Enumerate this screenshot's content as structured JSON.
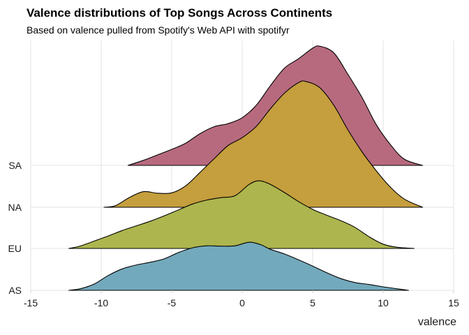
{
  "chart_data": {
    "type": "ridgeline",
    "title": "Valence distributions of Top Songs Across Continents",
    "subtitle": "Based on valence pulled from Spotify's Web API with spotifyr",
    "xlabel": "valence",
    "ylabel": "",
    "xlim": [
      -15,
      15
    ],
    "x_ticks": [
      -15,
      -10,
      -5,
      0,
      5,
      10,
      15
    ],
    "grid": true,
    "legend": "none",
    "series": [
      {
        "name": "AS",
        "color": "#73a9bc",
        "points": [
          [
            -12.3,
            0.0
          ],
          [
            -11.5,
            0.04
          ],
          [
            -10.5,
            0.16
          ],
          [
            -9.5,
            0.38
          ],
          [
            -8.5,
            0.55
          ],
          [
            -7.5,
            0.65
          ],
          [
            -6.5,
            0.72
          ],
          [
            -5.5,
            0.81
          ],
          [
            -4.5,
            0.97
          ],
          [
            -3.5,
            1.09
          ],
          [
            -2.5,
            1.14
          ],
          [
            -1.5,
            1.13
          ],
          [
            -0.5,
            1.14
          ],
          [
            0.5,
            1.23
          ],
          [
            1.3,
            1.17
          ],
          [
            2.0,
            1.05
          ],
          [
            3.0,
            0.93
          ],
          [
            4.0,
            0.78
          ],
          [
            5.0,
            0.62
          ],
          [
            6.0,
            0.45
          ],
          [
            7.0,
            0.3
          ],
          [
            8.0,
            0.2
          ],
          [
            9.0,
            0.15
          ],
          [
            10.0,
            0.09
          ],
          [
            11.0,
            0.04
          ],
          [
            11.8,
            0.0
          ]
        ]
      },
      {
        "name": "EU",
        "color": "#adb54e",
        "points": [
          [
            -12.3,
            0.0
          ],
          [
            -11.5,
            0.06
          ],
          [
            -10.5,
            0.19
          ],
          [
            -9.5,
            0.32
          ],
          [
            -8.5,
            0.46
          ],
          [
            -7.5,
            0.58
          ],
          [
            -6.5,
            0.7
          ],
          [
            -5.5,
            0.84
          ],
          [
            -4.5,
            0.99
          ],
          [
            -3.5,
            1.14
          ],
          [
            -2.5,
            1.24
          ],
          [
            -1.5,
            1.3
          ],
          [
            -0.5,
            1.35
          ],
          [
            0.5,
            1.64
          ],
          [
            1.2,
            1.73
          ],
          [
            2.0,
            1.64
          ],
          [
            3.0,
            1.43
          ],
          [
            4.0,
            1.2
          ],
          [
            5.0,
            1.0
          ],
          [
            6.0,
            0.85
          ],
          [
            7.0,
            0.71
          ],
          [
            8.0,
            0.54
          ],
          [
            9.0,
            0.3
          ],
          [
            10.0,
            0.11
          ],
          [
            11.0,
            0.03
          ],
          [
            12.2,
            0.0
          ]
        ]
      },
      {
        "name": "NA",
        "color": "#c59e3d",
        "points": [
          [
            -9.8,
            0.0
          ],
          [
            -9.0,
            0.04
          ],
          [
            -8.0,
            0.25
          ],
          [
            -7.0,
            0.4
          ],
          [
            -6.0,
            0.36
          ],
          [
            -5.0,
            0.37
          ],
          [
            -4.0,
            0.55
          ],
          [
            -3.0,
            0.89
          ],
          [
            -2.0,
            1.24
          ],
          [
            -1.0,
            1.58
          ],
          [
            0.0,
            1.78
          ],
          [
            1.0,
            2.07
          ],
          [
            2.0,
            2.52
          ],
          [
            3.0,
            2.92
          ],
          [
            4.0,
            3.19
          ],
          [
            4.5,
            3.22
          ],
          [
            5.5,
            3.06
          ],
          [
            6.5,
            2.61
          ],
          [
            7.5,
            1.98
          ],
          [
            8.5,
            1.42
          ],
          [
            9.5,
            0.94
          ],
          [
            10.5,
            0.52
          ],
          [
            11.5,
            0.21
          ],
          [
            12.8,
            0.0
          ]
        ]
      },
      {
        "name": "SA",
        "color": "#b76a7e",
        "points": [
          [
            -8.1,
            0.0
          ],
          [
            -7.0,
            0.13
          ],
          [
            -6.0,
            0.27
          ],
          [
            -5.0,
            0.41
          ],
          [
            -4.0,
            0.57
          ],
          [
            -3.0,
            0.81
          ],
          [
            -2.0,
            0.99
          ],
          [
            -1.0,
            1.07
          ],
          [
            0.0,
            1.22
          ],
          [
            1.0,
            1.54
          ],
          [
            2.0,
            2.04
          ],
          [
            3.0,
            2.49
          ],
          [
            4.0,
            2.73
          ],
          [
            5.0,
            3.0
          ],
          [
            5.5,
            3.05
          ],
          [
            6.5,
            2.88
          ],
          [
            7.5,
            2.33
          ],
          [
            8.5,
            1.74
          ],
          [
            9.5,
            1.05
          ],
          [
            10.5,
            0.54
          ],
          [
            11.5,
            0.16
          ],
          [
            12.8,
            0.0
          ]
        ]
      }
    ]
  }
}
